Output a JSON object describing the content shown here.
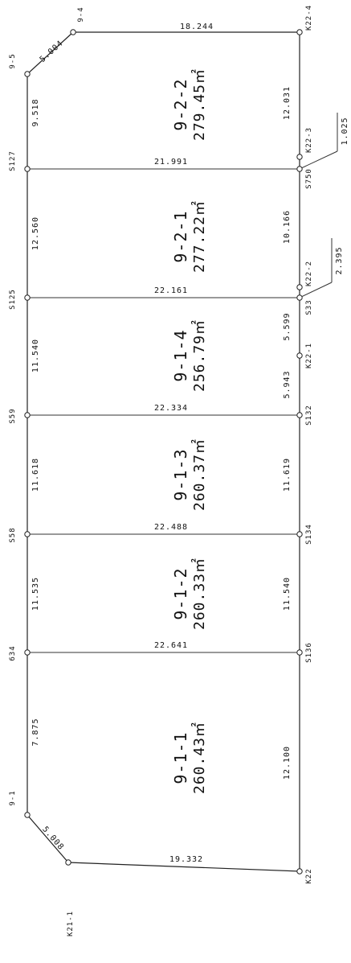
{
  "points": {
    "p9_4": "9-4",
    "p9_5": "9-5",
    "pS127": "S127",
    "pS125": "S125",
    "pS59": "S59",
    "pS58": "S58",
    "p634": "634",
    "p9_1": "9-1",
    "pK21_1": "K21-1",
    "pK22_4": "K22-4",
    "pK22_3": "K22-3",
    "pS750": "S750",
    "pK22_2": "K22-2",
    "pS33": "S33",
    "pK22_1": "K22-1",
    "pS132": "S132",
    "pS134": "S134",
    "pS136": "S136",
    "pK22": "K22"
  },
  "dims": {
    "top": "18.244",
    "diag_top": "5.004",
    "left_a": "9.518",
    "right_a": "12.031",
    "div_a": "21.991",
    "left_b": "12.560",
    "right_b": "10.166",
    "div_b": "22.161",
    "left_c": "11.540",
    "right_c1": "5.599",
    "right_c2": "5.943",
    "div_c": "22.334",
    "left_d": "11.618",
    "right_d": "11.619",
    "div_d": "22.488",
    "left_e": "11.535",
    "right_e": "11.540",
    "div_e": "22.641",
    "left_f": "7.875",
    "diag_bot": "5.008",
    "right_f": "12.100",
    "bottom": "19.332",
    "callout_1": "1.025",
    "callout_2": "2.395"
  },
  "lots": [
    {
      "number": "9-2-2",
      "area": "279.45㎡"
    },
    {
      "number": "9-2-1",
      "area": "277.22㎡"
    },
    {
      "number": "9-1-4",
      "area": "256.79㎡"
    },
    {
      "number": "9-1-3",
      "area": "260.37㎡"
    },
    {
      "number": "9-1-2",
      "area": "260.33㎡"
    },
    {
      "number": "9-1-1",
      "area": "260.43㎡"
    }
  ]
}
